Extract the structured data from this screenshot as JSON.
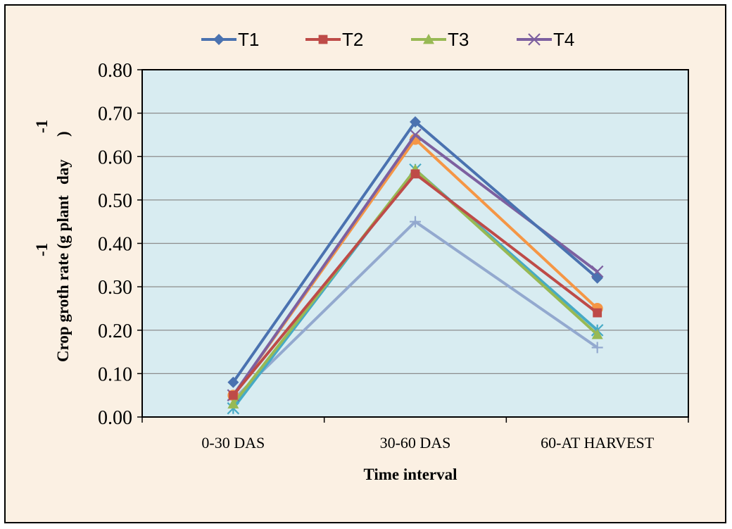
{
  "chart_data": {
    "type": "line",
    "categories": [
      "0-30 DAS",
      "30-60 DAS",
      "60-AT HARVEST"
    ],
    "xlabel": "Time interval",
    "ylabel": "Crop groth rate (g plant",
    "ylabel_mid": "day",
    "ylabel_end": ")",
    "ylabel_sup": "-1",
    "ylim": [
      0,
      0.8
    ],
    "yticks": [
      "0.00",
      "0.10",
      "0.20",
      "0.30",
      "0.40",
      "0.50",
      "0.60",
      "0.70",
      "0.80"
    ],
    "grid": true,
    "legend_position": "top",
    "plot_background": "#d8ecf1",
    "frame_background": "#fbf0e3",
    "series": [
      {
        "name": "T1",
        "values": [
          0.08,
          0.68,
          0.32
        ],
        "color": "#4a72b0",
        "marker": "diamond"
      },
      {
        "name": "T2",
        "values": [
          0.05,
          0.56,
          0.24
        ],
        "color": "#be4b48",
        "marker": "square"
      },
      {
        "name": "T3",
        "values": [
          0.03,
          0.57,
          0.19
        ],
        "color": "#98b954",
        "marker": "triangle"
      },
      {
        "name": "T4",
        "values": [
          0.05,
          0.65,
          0.335
        ],
        "color": "#7d60a0",
        "marker": "x"
      },
      {
        "values": [
          0.02,
          0.57,
          0.2
        ],
        "color": "#46aac5",
        "marker": "star"
      },
      {
        "values": [
          0.05,
          0.64,
          0.25
        ],
        "color": "#f59645",
        "marker": "circle"
      },
      {
        "values": [
          0.04,
          0.45,
          0.16
        ],
        "color": "#93a9cf",
        "marker": "plus"
      }
    ]
  }
}
